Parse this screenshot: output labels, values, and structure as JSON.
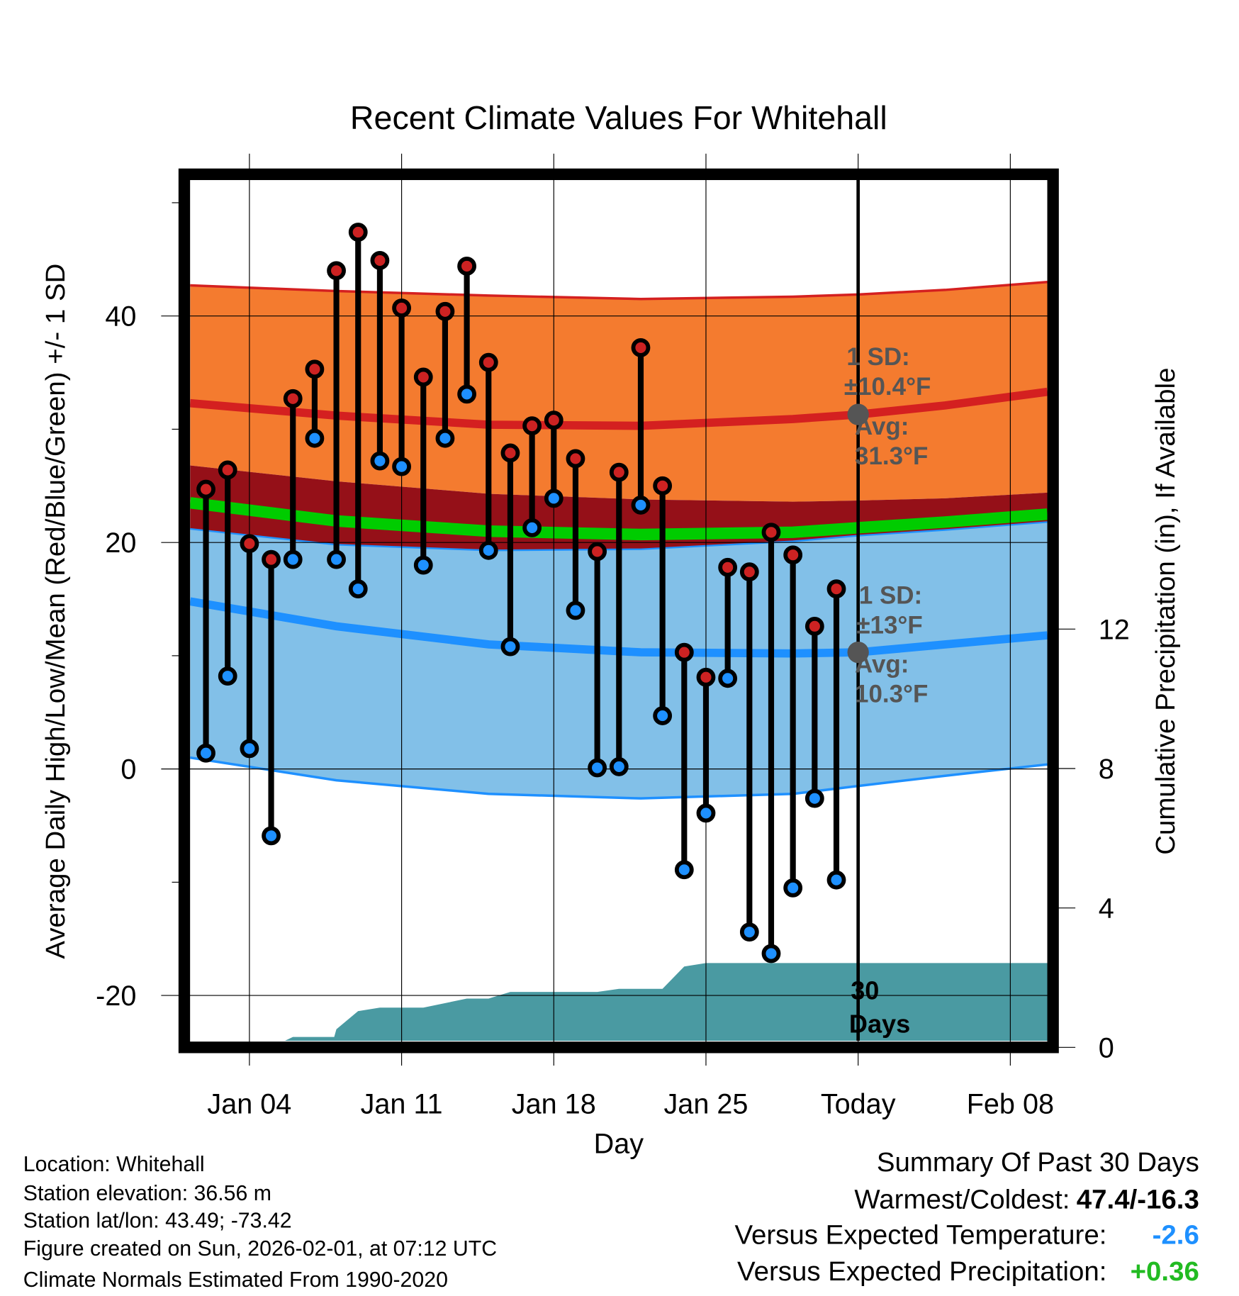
{
  "chart_data": {
    "type": "line",
    "title": "Recent Climate Values For Whitehall",
    "xlabel": "Day",
    "ylabel": "Average Daily High/Low/Mean (Red/Blue/Green) +/- 1 SD",
    "y2label": "Cumulative Precipitation (in), If Available",
    "xlim_day_of_jan": [
      1.27,
      40.7
    ],
    "ylim": [
      -24,
      52
    ],
    "y2lim": [
      0,
      23.5
    ],
    "yticks": [
      "40",
      "20",
      "0",
      "-20"
    ],
    "ytick_values": [
      40,
      20,
      0,
      -20
    ],
    "y2ticks": [
      "12",
      "8",
      "4",
      "0"
    ],
    "y2tick_values": [
      12,
      8,
      4,
      0
    ],
    "xticks": [
      "Jan 04",
      "Jan 11",
      "Jan 18",
      "Jan 25",
      "Today",
      "Feb 08"
    ],
    "xtick_days": [
      4,
      11,
      18,
      25,
      32,
      39
    ],
    "today_day": 32,
    "days": [
      2,
      3,
      4,
      5,
      6,
      7,
      8,
      9,
      10,
      11,
      12,
      13,
      14,
      15,
      16,
      17,
      18,
      19,
      20,
      21,
      22,
      23,
      24,
      25,
      26,
      27,
      28,
      29,
      30,
      31
    ],
    "highs": [
      24.7,
      26.4,
      19.9,
      18.5,
      32.7,
      35.3,
      44.0,
      47.4,
      44.9,
      40.7,
      34.6,
      40.4,
      44.4,
      35.9,
      27.9,
      30.3,
      30.8,
      27.4,
      19.2,
      26.2,
      37.2,
      25.0,
      10.3,
      8.1,
      17.8,
      17.4,
      20.9,
      18.9,
      12.6,
      15.9
    ],
    "lows": [
      1.4,
      8.2,
      1.8,
      -5.9,
      18.5,
      29.2,
      18.5,
      15.9,
      27.2,
      26.7,
      18.0,
      29.2,
      33.1,
      19.3,
      10.8,
      21.3,
      23.9,
      14.0,
      0.1,
      0.2,
      23.3,
      4.7,
      -8.9,
      -3.9,
      8.0,
      -14.4,
      -16.3,
      -10.5,
      -2.6,
      -9.8
    ],
    "normals": {
      "days": [
        1.27,
        8,
        15,
        22,
        29,
        32,
        36,
        40.7
      ],
      "high_upper": [
        42.7,
        42.2,
        41.8,
        41.5,
        41.7,
        41.9,
        42.3,
        43.0
      ],
      "high_mean": [
        32.3,
        31.2,
        30.4,
        30.3,
        30.9,
        31.3,
        32.1,
        33.3
      ],
      "high_lower": [
        26.8,
        25.4,
        24.3,
        23.8,
        23.6,
        23.7,
        23.9,
        24.4
      ],
      "mean": [
        23.5,
        21.9,
        21.0,
        20.7,
        20.9,
        21.3,
        21.8,
        22.5
      ],
      "low_upper": [
        21.2,
        19.8,
        19.3,
        19.4,
        20.1,
        20.6,
        21.1,
        21.8
      ],
      "low_mean": [
        14.8,
        12.6,
        11.0,
        10.3,
        10.2,
        10.3,
        11.0,
        11.8
      ],
      "low_lower": [
        1.0,
        -1.0,
        -2.2,
        -2.6,
        -2.2,
        -1.5,
        -0.6,
        0.4
      ]
    },
    "precip": {
      "days": [
        1.27,
        5,
        6,
        7.9,
        8,
        9,
        10,
        12,
        14,
        15,
        16,
        20,
        21,
        23,
        24,
        25,
        31,
        40.7
      ],
      "values": [
        0,
        0,
        0.3,
        0.3,
        0.52,
        1.04,
        1.14,
        1.14,
        1.4,
        1.4,
        1.59,
        1.59,
        1.68,
        1.68,
        2.32,
        2.42,
        2.42,
        2.42
      ]
    },
    "annotations": {
      "high_sd_label": "1 SD:",
      "high_sd_value": "±10.4°F",
      "high_avg_label": "Avg:",
      "high_avg_value": "31.3°F",
      "high_avg": 31.3,
      "low_sd_label": "1 SD:",
      "low_sd_value": "±13°F",
      "low_avg_label": "Avg:",
      "low_avg_value": "10.3°F",
      "low_avg": 10.3,
      "days_label_1": "30",
      "days_label_2": "Days"
    },
    "colors": {
      "high_band": "#f47b2f",
      "high_line": "#d42020",
      "dark_band": "#951018",
      "mean_line": "#00cc00",
      "low_band": "#82c0e8",
      "low_line": "#1e90ff",
      "precip": "#4a9aa2",
      "high_dot": "#cc2222",
      "low_dot": "#1e90ff"
    }
  },
  "footer": {
    "location": "Location: Whitehall",
    "elevation": "Station elevation: 36.56 m",
    "latlon": "Station lat/lon: 43.49; -73.42",
    "created": "Figure created on Sun, 2026-02-01, at 07:12 UTC",
    "normals": "Climate Normals Estimated From 1990-2020"
  },
  "summary": {
    "title": "Summary Of Past 30 Days",
    "warmest_label": "Warmest/Coldest:",
    "warmest_value": "47.4/-16.3",
    "temp_label": "Versus Expected Temperature:",
    "temp_value": "-2.6",
    "temp_color": "#1e90ff",
    "precip_label": "Versus Expected Precipitation:",
    "precip_value": "+0.36",
    "precip_color": "#22bb22"
  }
}
